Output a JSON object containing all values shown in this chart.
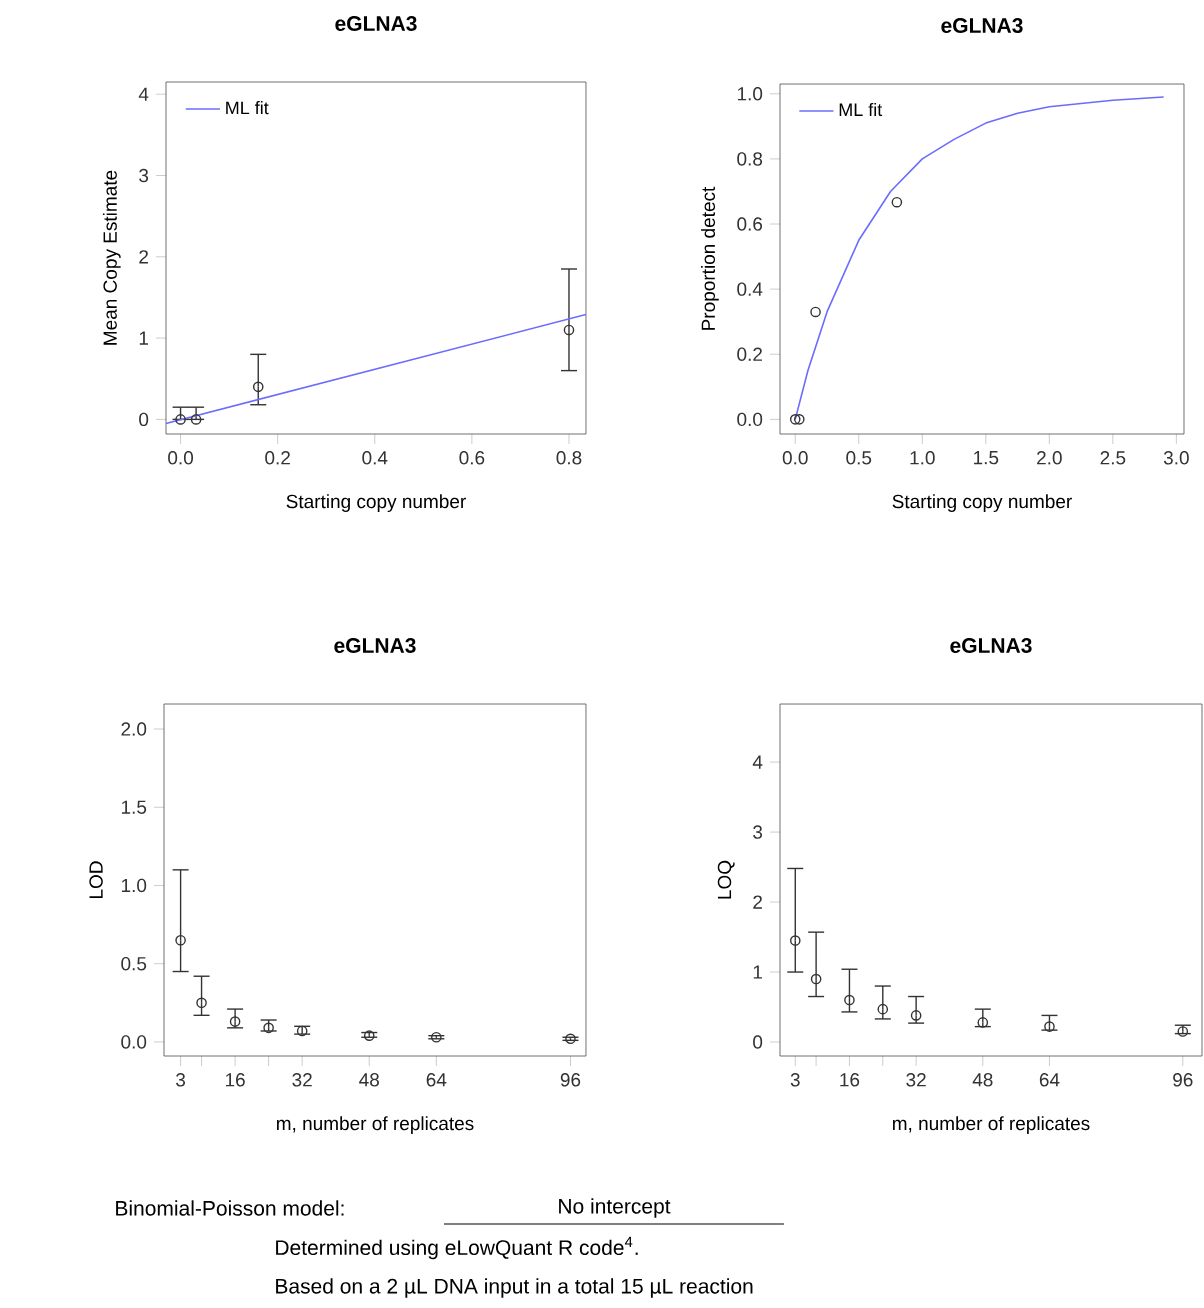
{
  "chart_data": [
    {
      "type": "scatter",
      "title": "eGLNA3",
      "xlabel": "Starting copy number",
      "ylabel": "Mean Copy Estimate",
      "xlim": [
        -0.03,
        0.835
      ],
      "ylim": [
        -0.18,
        4.15
      ],
      "xticks": [
        {
          "value": 0,
          "label": "0.0"
        },
        0.2,
        0.4,
        0.6,
        0.8
      ],
      "yticks": [
        0,
        1,
        2,
        3,
        4
      ],
      "legend": "top left",
      "series": [
        {
          "type": "scatter",
          "marker": "circle",
          "color": "#333333",
          "x": [
            0,
            0.032,
            0.16,
            0.8
          ],
          "values": [
            0,
            0,
            0.4,
            1.1
          ],
          "errors": [
            [
              0,
              0.15
            ],
            [
              0,
              0.15
            ],
            [
              0.18,
              0.8
            ],
            [
              0.6,
              1.85
            ]
          ]
        },
        {
          "type": "line",
          "name": "ML fit",
          "color": "#6b6bff",
          "x": [
            -0.03,
            0.835
          ],
          "values": [
            -0.05,
            1.29
          ]
        }
      ]
    },
    {
      "type": "scatter",
      "title": "eGLNA3",
      "xlabel": "Starting copy number",
      "ylabel": "Proportion detect",
      "xlim": [
        -0.12,
        3.06
      ],
      "ylim": [
        -0.045,
        1.03
      ],
      "xticks": [
        {
          "value": 0,
          "label": "0.0"
        },
        0.5,
        {
          "value": 1,
          "label": "1.0"
        },
        1.5,
        {
          "value": 2,
          "label": "2.0"
        },
        2.5,
        {
          "value": 3,
          "label": "3.0"
        }
      ],
      "yticks": [
        {
          "value": 0,
          "label": "0.0"
        },
        0.2,
        0.4,
        0.6,
        0.8,
        {
          "value": 1,
          "label": "1.0"
        }
      ],
      "legend": "top left",
      "series": [
        {
          "type": "scatter",
          "marker": "circle",
          "color": "#333333",
          "x": [
            0,
            0.032,
            0.16,
            0.8
          ],
          "values": [
            0,
            0,
            0.33,
            0.667
          ]
        },
        {
          "type": "line",
          "name": "ML fit",
          "color": "#6b6bff",
          "x": [
            0,
            0.1,
            0.25,
            0.5,
            0.75,
            1.0,
            1.25,
            1.5,
            1.75,
            2.0,
            2.5,
            2.9
          ],
          "values": [
            0,
            0.15,
            0.33,
            0.55,
            0.7,
            0.8,
            0.86,
            0.91,
            0.94,
            0.96,
            0.98,
            0.99
          ]
        }
      ]
    },
    {
      "type": "scatter",
      "title": "eGLNA3",
      "xlabel": "m, number of replicates",
      "ylabel": "LOD",
      "xlim": [
        -0.96,
        99.7
      ],
      "ylim": [
        -0.09,
        2.16
      ],
      "xticks": [
        3,
        {
          "value": 8,
          "label": null
        },
        16,
        {
          "value": 24,
          "label": null
        },
        32,
        48,
        64,
        96
      ],
      "yticks": [
        {
          "value": 0,
          "label": "0.0"
        },
        0.5,
        {
          "value": 1,
          "label": "1.0"
        },
        1.5,
        {
          "value": 2,
          "label": "2.0"
        }
      ],
      "marker": "circle",
      "series": [
        {
          "type": "scatter",
          "color": "#333333",
          "x": [
            3,
            8,
            16,
            24,
            32,
            48,
            64,
            96
          ],
          "values": [
            0.65,
            0.25,
            0.13,
            0.09,
            0.07,
            0.04,
            0.03,
            0.02
          ],
          "errors": [
            [
              0.45,
              1.1
            ],
            [
              0.17,
              0.42
            ],
            [
              0.09,
              0.21
            ],
            [
              0.07,
              0.14
            ],
            [
              0.05,
              0.1
            ],
            [
              0.03,
              0.06
            ],
            [
              0.02,
              0.04
            ],
            [
              0.01,
              0.03
            ]
          ]
        }
      ]
    },
    {
      "type": "scatter",
      "title": "eGLNA3",
      "xlabel": "m, number of replicates",
      "ylabel": "LOQ",
      "xlim": [
        -0.67,
        100.6
      ],
      "ylim": [
        -0.2,
        4.83
      ],
      "xticks": [
        3,
        {
          "value": 8,
          "label": null
        },
        16,
        {
          "value": 24,
          "label": null
        },
        32,
        48,
        64,
        96
      ],
      "yticks": [
        0,
        1,
        2,
        3,
        4
      ],
      "marker": "circle",
      "series": [
        {
          "type": "scatter",
          "color": "#333333",
          "x": [
            3,
            8,
            16,
            24,
            32,
            48,
            64,
            96
          ],
          "values": [
            1.45,
            0.9,
            0.6,
            0.47,
            0.38,
            0.28,
            0.22,
            0.15
          ],
          "errors": [
            [
              1.0,
              2.48
            ],
            [
              0.65,
              1.57
            ],
            [
              0.43,
              1.04
            ],
            [
              0.33,
              0.8
            ],
            [
              0.27,
              0.65
            ],
            [
              0.22,
              0.47
            ],
            [
              0.17,
              0.38
            ],
            [
              0.12,
              0.24
            ]
          ]
        }
      ]
    },
    {
      "type": "other",
      "annotations": [
        "Binomial-Poisson model:",
        "No intercept",
        "Determined using eLowQuant R code$^{4}$.",
        "Based on a 2 µL DNA input in a total 15 µL reaction"
      ]
    }
  ]
}
